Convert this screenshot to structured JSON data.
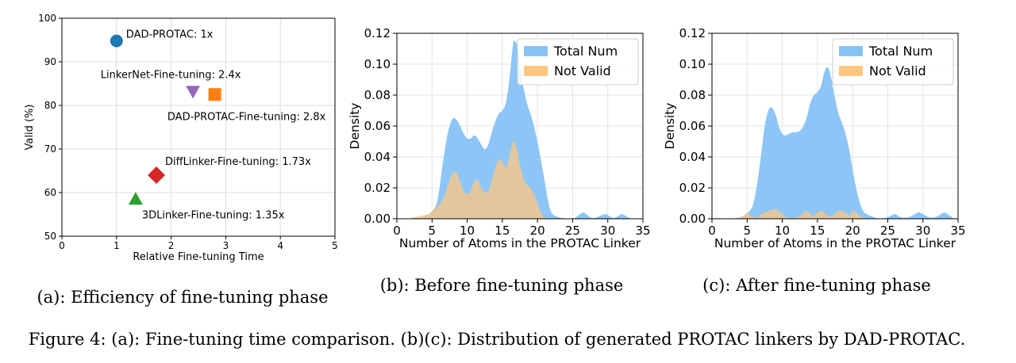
{
  "figure": {
    "caption": "Figure 4: (a): Fine-tuning time comparison. (b)(c): Distribution of generated PROTAC linkers by DAD-PROTAC."
  },
  "chart_data": [
    {
      "id": "a",
      "type": "scatter",
      "subcaption": "(a): Efficiency of fine-tuning phase",
      "title": "",
      "xlabel": "Relative Fine-tuning Time",
      "ylabel": "Valid (%)",
      "xlim": [
        0,
        5
      ],
      "ylim": [
        50,
        100
      ],
      "xticks": [
        0,
        1,
        2,
        3,
        4,
        5
      ],
      "yticks": [
        50,
        60,
        70,
        80,
        90,
        100
      ],
      "grid": true,
      "points": [
        {
          "label": "DAD-PROTAC: 1x",
          "x": 1.0,
          "y": 94.8,
          "marker": "circle",
          "color": "#1f77b4"
        },
        {
          "label": "LinkerNet-Fine-tuning: 2.4x",
          "x": 2.4,
          "y": 83.2,
          "marker": "triangle-down",
          "color": "#9467bd"
        },
        {
          "label": "DAD-PROTAC-Fine-tuning: 2.8x",
          "x": 2.8,
          "y": 82.5,
          "marker": "square",
          "color": "#ff7f0e"
        },
        {
          "label": "DiffLinker-Fine-tuning: 1.73x",
          "x": 1.73,
          "y": 64.0,
          "marker": "diamond",
          "color": "#d62728"
        },
        {
          "label": "3DLinker-Fine-tuning: 1.35x",
          "x": 1.35,
          "y": 58.5,
          "marker": "triangle-up",
          "color": "#2ca02c"
        }
      ]
    },
    {
      "id": "b",
      "type": "area",
      "subcaption": "(b): Before fine-tuning phase",
      "title": "",
      "xlabel": "Number of Atoms in the PROTAC Linker",
      "ylabel": "Density",
      "xlim": [
        0,
        35
      ],
      "ylim": [
        0,
        0.12
      ],
      "xticks": [
        0,
        5,
        10,
        15,
        20,
        25,
        30,
        35
      ],
      "yticks": [
        "0.00",
        "0.02",
        "0.04",
        "0.06",
        "0.08",
        "0.10",
        "0.12"
      ],
      "grid": true,
      "legend_position": "top-right",
      "series": [
        {
          "name": "Total Num",
          "color": "#87c3f5",
          "points": [
            [
              1.5,
              0
            ],
            [
              2.5,
              0.0005
            ],
            [
              3.5,
              0.001
            ],
            [
              4.5,
              0.003
            ],
            [
              5.5,
              0.008
            ],
            [
              6,
              0.018
            ],
            [
              6.5,
              0.035
            ],
            [
              7,
              0.05
            ],
            [
              7.5,
              0.06
            ],
            [
              8,
              0.065
            ],
            [
              8.5,
              0.064
            ],
            [
              9,
              0.06
            ],
            [
              9.5,
              0.055
            ],
            [
              10,
              0.052
            ],
            [
              10.5,
              0.052
            ],
            [
              11,
              0.054
            ],
            [
              11.5,
              0.052
            ],
            [
              12,
              0.048
            ],
            [
              12.5,
              0.045
            ],
            [
              13,
              0.048
            ],
            [
              13.5,
              0.056
            ],
            [
              14,
              0.063
            ],
            [
              14.5,
              0.068
            ],
            [
              15,
              0.07
            ],
            [
              15.5,
              0.075
            ],
            [
              16,
              0.09
            ],
            [
              16.5,
              0.112
            ],
            [
              16.8,
              0.115
            ],
            [
              17.2,
              0.11
            ],
            [
              17.8,
              0.09
            ],
            [
              18.5,
              0.075
            ],
            [
              19,
              0.068
            ],
            [
              19.5,
              0.06
            ],
            [
              20,
              0.05
            ],
            [
              20.5,
              0.038
            ],
            [
              21,
              0.025
            ],
            [
              21.5,
              0.012
            ],
            [
              22,
              0.004
            ],
            [
              23,
              0.001
            ],
            [
              24,
              0.0002
            ],
            [
              25,
              0
            ],
            [
              25.5,
              0.001
            ],
            [
              26.5,
              0.004
            ],
            [
              27.5,
              0.001
            ],
            [
              28,
              0.0005
            ],
            [
              29,
              0.002
            ],
            [
              29.7,
              0.003
            ],
            [
              30.5,
              0.001
            ],
            [
              31,
              0.0005
            ],
            [
              32,
              0.003
            ],
            [
              32.8,
              0.001
            ],
            [
              33.5,
              0
            ]
          ]
        },
        {
          "name": "Not Valid",
          "color": "#ffc680",
          "points": [
            [
              1.5,
              0
            ],
            [
              2.5,
              0.001
            ],
            [
              3.5,
              0.002
            ],
            [
              4.5,
              0.003
            ],
            [
              5,
              0.005
            ],
            [
              5.5,
              0.007
            ],
            [
              6,
              0.009
            ],
            [
              6.5,
              0.012
            ],
            [
              7,
              0.018
            ],
            [
              7.5,
              0.025
            ],
            [
              8,
              0.03
            ],
            [
              8.5,
              0.03
            ],
            [
              9,
              0.024
            ],
            [
              9.5,
              0.018
            ],
            [
              10,
              0.016
            ],
            [
              10.5,
              0.018
            ],
            [
              11,
              0.024
            ],
            [
              11.5,
              0.025
            ],
            [
              12,
              0.02
            ],
            [
              12.5,
              0.017
            ],
            [
              13,
              0.018
            ],
            [
              13.5,
              0.025
            ],
            [
              14,
              0.033
            ],
            [
              14.5,
              0.038
            ],
            [
              15,
              0.037
            ],
            [
              15.5,
              0.033
            ],
            [
              16,
              0.04
            ],
            [
              16.5,
              0.05
            ],
            [
              17,
              0.046
            ],
            [
              17.5,
              0.035
            ],
            [
              18,
              0.026
            ],
            [
              18.5,
              0.022
            ],
            [
              19,
              0.02
            ],
            [
              19.5,
              0.016
            ],
            [
              20,
              0.01
            ],
            [
              20.5,
              0.004
            ],
            [
              21,
              0.001
            ],
            [
              22,
              0
            ]
          ]
        }
      ]
    },
    {
      "id": "c",
      "type": "area",
      "subcaption": "(c): After fine-tuning phase",
      "title": "",
      "xlabel": "Number of Atoms in the PROTAC Linker",
      "ylabel": "Density",
      "xlim": [
        0,
        35
      ],
      "ylim": [
        0,
        0.12
      ],
      "xticks": [
        0,
        5,
        10,
        15,
        20,
        25,
        30,
        35
      ],
      "yticks": [
        "0.00",
        "0.02",
        "0.04",
        "0.06",
        "0.08",
        "0.10",
        "0.12"
      ],
      "grid": true,
      "legend_position": "top-right",
      "series": [
        {
          "name": "Total Num",
          "color": "#87c3f5",
          "points": [
            [
              2.5,
              0
            ],
            [
              3.5,
              0.0005
            ],
            [
              4.5,
              0.002
            ],
            [
              5.5,
              0.006
            ],
            [
              6,
              0.012
            ],
            [
              6.5,
              0.025
            ],
            [
              7,
              0.042
            ],
            [
              7.5,
              0.06
            ],
            [
              8,
              0.07
            ],
            [
              8.5,
              0.072
            ],
            [
              9,
              0.068
            ],
            [
              9.5,
              0.06
            ],
            [
              10,
              0.055
            ],
            [
              10.5,
              0.054
            ],
            [
              11,
              0.055
            ],
            [
              11.5,
              0.056
            ],
            [
              12,
              0.056
            ],
            [
              12.5,
              0.057
            ],
            [
              13,
              0.06
            ],
            [
              13.5,
              0.066
            ],
            [
              14,
              0.075
            ],
            [
              14.5,
              0.08
            ],
            [
              15,
              0.082
            ],
            [
              15.5,
              0.086
            ],
            [
              16,
              0.095
            ],
            [
              16.5,
              0.098
            ],
            [
              17,
              0.09
            ],
            [
              17.5,
              0.078
            ],
            [
              18,
              0.068
            ],
            [
              18.5,
              0.062
            ],
            [
              19,
              0.055
            ],
            [
              19.5,
              0.045
            ],
            [
              20,
              0.032
            ],
            [
              20.5,
              0.02
            ],
            [
              21,
              0.011
            ],
            [
              21.5,
              0.005
            ],
            [
              22,
              0.003
            ],
            [
              22.5,
              0.002
            ],
            [
              23,
              0.001
            ],
            [
              24,
              0
            ],
            [
              25,
              0.001
            ],
            [
              26,
              0.003
            ],
            [
              26.8,
              0.001
            ],
            [
              28,
              0.001
            ],
            [
              29.3,
              0.004
            ],
            [
              30,
              0.003
            ],
            [
              30.8,
              0.001
            ],
            [
              31.8,
              0.001
            ],
            [
              33,
              0.004
            ],
            [
              33.8,
              0.002
            ],
            [
              34.5,
              0
            ]
          ]
        },
        {
          "name": "Not Valid",
          "color": "#ffc680",
          "points": [
            [
              3.5,
              0
            ],
            [
              4.5,
              0.002
            ],
            [
              5,
              0.004
            ],
            [
              5.5,
              0.002
            ],
            [
              6,
              0.001
            ],
            [
              6.5,
              0.001
            ],
            [
              7,
              0.003
            ],
            [
              8,
              0.005
            ],
            [
              9,
              0.006
            ],
            [
              9.5,
              0.005
            ],
            [
              10,
              0.003
            ],
            [
              10.5,
              0.001
            ],
            [
              11,
              0.0005
            ],
            [
              12,
              0.001
            ],
            [
              12.5,
              0.002
            ],
            [
              13,
              0.004
            ],
            [
              13.5,
              0.005
            ],
            [
              14,
              0.003
            ],
            [
              14.5,
              0.002
            ],
            [
              15,
              0.004
            ],
            [
              15.5,
              0.005
            ],
            [
              16,
              0.004
            ],
            [
              16.5,
              0.002
            ],
            [
              17,
              0.0015
            ],
            [
              18,
              0.005
            ],
            [
              19,
              0.004
            ],
            [
              19.5,
              0.002
            ],
            [
              20,
              0.005
            ],
            [
              20.5,
              0.004
            ],
            [
              21,
              0.002
            ],
            [
              22,
              0
            ]
          ]
        }
      ]
    }
  ]
}
